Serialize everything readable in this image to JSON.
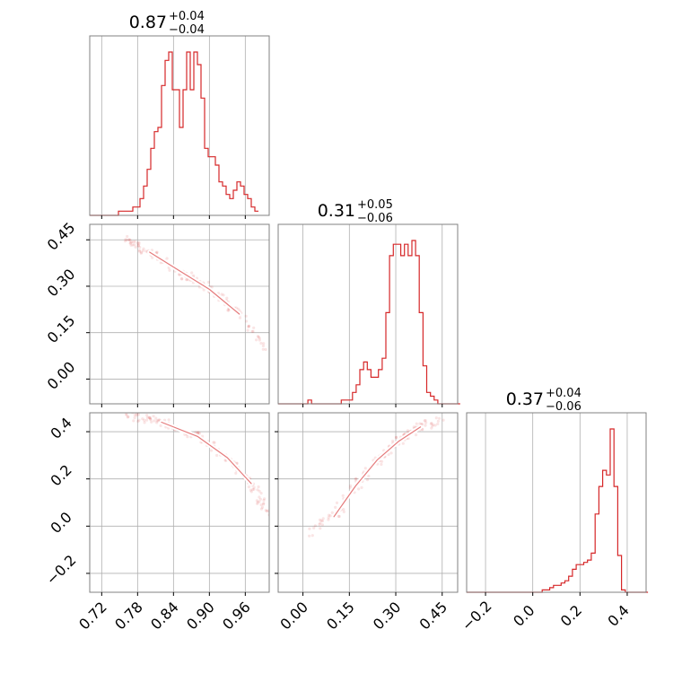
{
  "chart_data": {
    "type": "corner",
    "color": "#d62728",
    "parameters": [
      {
        "title_value": "0.87",
        "title_plus": "+0.04",
        "title_minus": "−0.04",
        "ticks": [
          "0.72",
          "0.78",
          "0.84",
          "0.90",
          "0.96"
        ],
        "range": [
          0.7,
          1.0
        ]
      },
      {
        "title_value": "0.31",
        "title_plus": "+0.05",
        "title_minus": "−0.06",
        "ticks": [
          "0.00",
          "0.15",
          "0.30",
          "0.45"
        ],
        "range": [
          -0.08,
          0.5
        ]
      },
      {
        "title_value": "0.37",
        "title_plus": "+0.04",
        "title_minus": "−0.06",
        "ticks": [
          "−0.2",
          "0.0",
          "0.2",
          "0.4"
        ],
        "range": [
          -0.28,
          0.48
        ]
      }
    ],
    "histograms": [
      {
        "bin_start": 0.7,
        "bin_width": 0.006,
        "counts": [
          0,
          0,
          0,
          0,
          0,
          0,
          0,
          0,
          1,
          1,
          1,
          1,
          2,
          2,
          4,
          7,
          11,
          16,
          20,
          21,
          31,
          37,
          39,
          30,
          30,
          21,
          30,
          39,
          30,
          39,
          36,
          28,
          16,
          14,
          14,
          12,
          8,
          7,
          5,
          4,
          6,
          8,
          7,
          5,
          4,
          2,
          1
        ]
      },
      {
        "bin_start": -0.08,
        "bin_width": 0.012,
        "counts": [
          0,
          0,
          0,
          0,
          0,
          0,
          0,
          0,
          1,
          0,
          0,
          0,
          0,
          0,
          0,
          0,
          0,
          1,
          1,
          1,
          3,
          5,
          9,
          11,
          9,
          7,
          7,
          9,
          12,
          24,
          39,
          42,
          42,
          39,
          42,
          39,
          43,
          39,
          24,
          10,
          3,
          2,
          1,
          0,
          0,
          0,
          0,
          0,
          0
        ]
      },
      {
        "bin_start": -0.28,
        "bin_width": 0.016,
        "counts": [
          0,
          0,
          0,
          0,
          0,
          0,
          0,
          0,
          0,
          0,
          0,
          0,
          0,
          0,
          0,
          0,
          0,
          0,
          0,
          0,
          1,
          1,
          2,
          3,
          3,
          4,
          5,
          7,
          10,
          12,
          12,
          13,
          14,
          17,
          34,
          46,
          53,
          51,
          71,
          46,
          16,
          1,
          0,
          0,
          0,
          0,
          0,
          0
        ]
      }
    ],
    "correlations": [
      {
        "pair": [
          0,
          1
        ],
        "ridge": [
          [
            0.76,
            0.45
          ],
          [
            0.8,
            0.41
          ],
          [
            0.85,
            0.35
          ],
          [
            0.9,
            0.29
          ],
          [
            0.95,
            0.21
          ],
          [
            0.99,
            0.1
          ]
        ]
      },
      {
        "pair": [
          0,
          2
        ],
        "ridge": [
          [
            0.76,
            0.47
          ],
          [
            0.82,
            0.44
          ],
          [
            0.88,
            0.38
          ],
          [
            0.93,
            0.29
          ],
          [
            0.97,
            0.18
          ],
          [
            0.995,
            0.06
          ]
        ]
      },
      {
        "pair": [
          1,
          2
        ],
        "ridge": [
          [
            0.0,
            -0.04
          ],
          [
            0.1,
            0.04
          ],
          [
            0.17,
            0.17
          ],
          [
            0.24,
            0.28
          ],
          [
            0.31,
            0.36
          ],
          [
            0.38,
            0.42
          ],
          [
            0.46,
            0.46
          ]
        ]
      }
    ],
    "grid": true
  }
}
